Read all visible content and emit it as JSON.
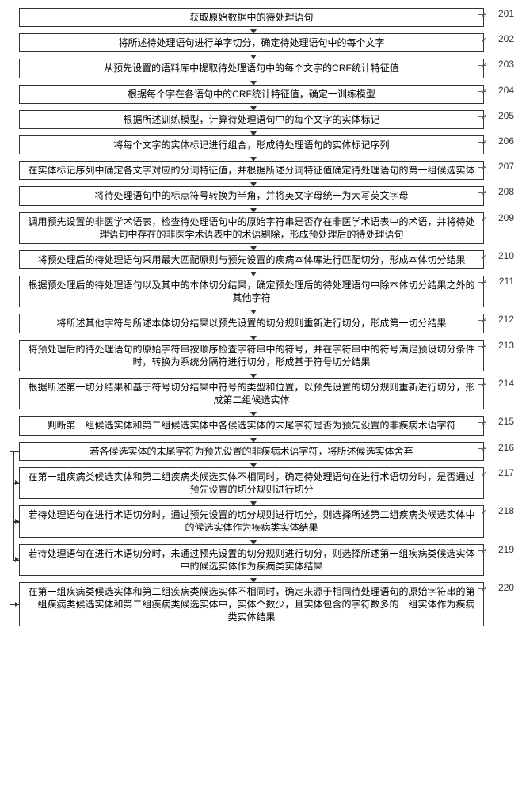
{
  "diagram": {
    "type": "flowchart",
    "background_color": "#ffffff",
    "border_color": "#333333",
    "text_color": "#333333",
    "font_size": 12,
    "arrow_color": "#333333",
    "steps": [
      {
        "num": "201",
        "text": "获取原始数据中的待处理语句"
      },
      {
        "num": "202",
        "text": "将所述待处理语句进行单字切分，确定待处理语句中的每个文字"
      },
      {
        "num": "203",
        "text": "从预先设置的语料库中提取待处理语句中的每个文字的CRF统计特征值"
      },
      {
        "num": "204",
        "text": "根据每个字在各语句中的CRF统计特征值，确定一训练模型"
      },
      {
        "num": "205",
        "text": "根据所述训练模型，计算待处理语句中的每个文字的实体标记"
      },
      {
        "num": "206",
        "text": "将每个文字的实体标记进行组合，形成待处理语句的实体标记序列"
      },
      {
        "num": "207",
        "text": "在实体标记序列中确定各文字对应的分词特征值，并根据所述分词特征值确定待处理语句的第一组候选实体"
      },
      {
        "num": "208",
        "text": "将待处理语句中的标点符号转换为半角，并将英文字母统一为大写英文字母"
      },
      {
        "num": "209",
        "text": "调用预先设置的非医学术语表，检查待处理语句中的原始字符串是否存在非医学术语表中的术语，并将待处理语句中存在的非医学术语表中的术语剔除，形成预处理后的待处理语句"
      },
      {
        "num": "210",
        "text": "将预处理后的待处理语句采用最大匹配原则与预先设置的疾病本体库进行匹配切分，形成本体切分结果"
      },
      {
        "num": "211",
        "text": "根据预处理后的待处理语句以及其中的本体切分结果，确定预处理后的待处理语句中除本体切分结果之外的其他字符"
      },
      {
        "num": "212",
        "text": "将所述其他字符与所述本体切分结果以预先设置的切分规则重新进行切分，形成第一切分结果"
      },
      {
        "num": "213",
        "text": "将预处理后的待处理语句的原始字符串按顺序检查字符串中的符号，并在字符串中的符号满足预设切分条件时，转换为系统分隔符进行切分，形成基于符号切分结果"
      },
      {
        "num": "214",
        "text": "根据所述第一切分结果和基于符号切分结果中符号的类型和位置，以预先设置的切分规则重新进行切分，形成第二组候选实体"
      },
      {
        "num": "215",
        "text": "判断第一组候选实体和第二组候选实体中各候选实体的末尾字符是否为预先设置的非疾病术语字符"
      },
      {
        "num": "216",
        "text": "若各候选实体的末尾字符为预先设置的非疾病术语字符，将所述候选实体舍弃"
      },
      {
        "num": "217",
        "text": "在第一组疾病类候选实体和第二组疾病类候选实体不相同时，确定待处理语句在进行术语切分时，是否通过预先设置的切分规则进行切分"
      },
      {
        "num": "218",
        "text": "若待处理语句在进行术语切分时，通过预先设置的切分规则进行切分，则选择所述第二组疾病类候选实体中的候选实体作为疾病类实体结果"
      },
      {
        "num": "219",
        "text": "若待处理语句在进行术语切分时，未通过预先设置的切分规则进行切分，则选择所述第一组疾病类候选实体中的候选实体作为疾病类实体结果"
      },
      {
        "num": "220",
        "text": "在第一组疾病类候选实体和第二组疾病类候选实体不相同时，确定来源于相同待处理语句的原始字符串的第一组疾病类候选实体和第二组疾病类候选实体中，实体个数少，且实体包含的字符数多的一组实体作为疾病类实体结果"
      }
    ]
  }
}
